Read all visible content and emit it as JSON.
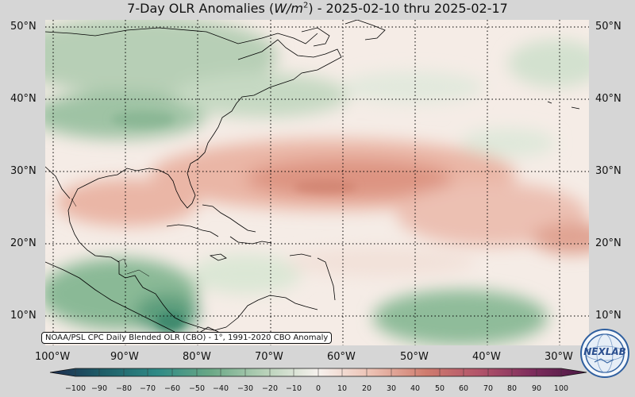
{
  "title_pre": "7-Day OLR Anomalies (",
  "title_unit_base": "W/m",
  "title_unit_exp": "2",
  "title_post": ") - 2025-02-10 thru 2025-02-17",
  "lat_labels": [
    "50°N",
    "40°N",
    "30°N",
    "20°N",
    "10°N"
  ],
  "lon_labels": [
    "100°W",
    "90°W",
    "80°W",
    "70°W",
    "60°W",
    "50°W",
    "40°W",
    "30°W"
  ],
  "colorbar_ticks": [
    "−100",
    "−90",
    "−80",
    "−70",
    "−60",
    "−50",
    "−40",
    "−30",
    "−20",
    "−10",
    "0",
    "10",
    "20",
    "30",
    "40",
    "50",
    "60",
    "70",
    "80",
    "90",
    "100"
  ],
  "credit": "NOAA/PSL CPC Daily Blended OLR (CBO) - 1°, 1991-2020 CBO Anomaly",
  "logo_text": "NEXLAB",
  "colors": {
    "negative_strong": "#1a4f52",
    "negative": "#6aa886",
    "neutral": "#f7f2ee",
    "positive": "#dc8f7e",
    "positive_strong": "#5e1b3b"
  }
}
